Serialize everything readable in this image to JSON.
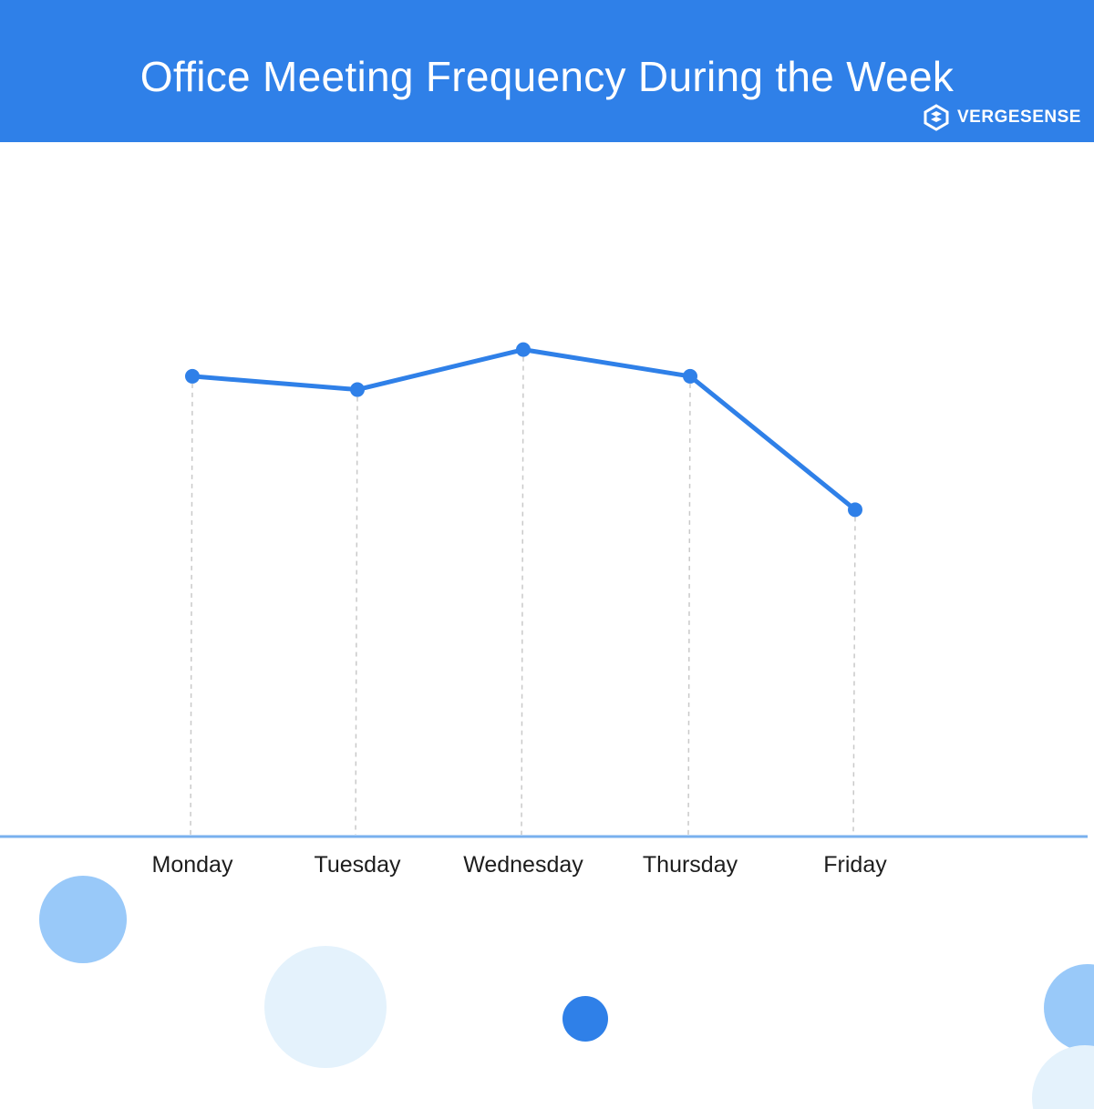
{
  "header": {
    "title": "Office Meeting Frequency During the Week",
    "brand": "VERGESENSE",
    "brand_icon": "vergesense-logo-icon",
    "background": "#2f80e8"
  },
  "chart_data": {
    "type": "line",
    "categories": [
      "Monday",
      "Tuesday",
      "Wednesday",
      "Thursday",
      "Friday"
    ],
    "series": [
      {
        "values": [
          69,
          67,
          73,
          69,
          49
        ]
      }
    ],
    "ylim": [
      0,
      100
    ],
    "grid": "vertical dashed drop lines",
    "line_color": "#2f80e8",
    "axis_color": "#79b0ee"
  },
  "decorations": {
    "colors": [
      "#99c9f9",
      "#e4f2fc",
      "#2f80e8"
    ]
  }
}
